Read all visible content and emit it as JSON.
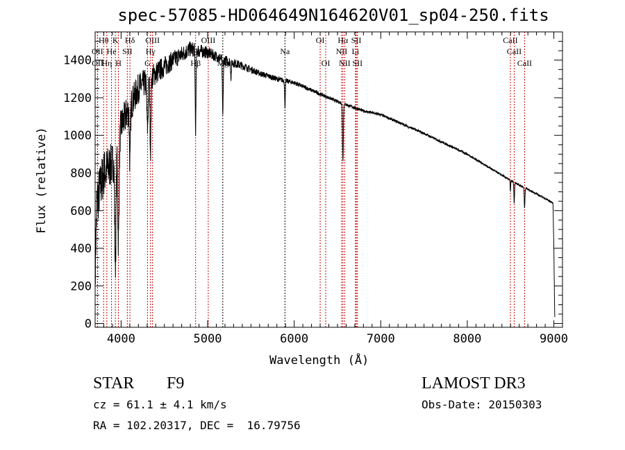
{
  "title": "spec-57085-HD064649N164620V01_sp04-250.fits",
  "info": {
    "class": "STAR",
    "subclass": "F9",
    "survey": "LAMOST DR3",
    "cz": "cz = 61.1 ± 4.1 km/s",
    "obs_date": "Obs-Date: 20150303",
    "coords": "RA = 102.20317, DEC =  16.79756"
  },
  "chart_data": {
    "type": "line",
    "title": "spec-57085-HD064649N164620V01_sp04-250.fits",
    "xlabel": "Wavelength (Å)",
    "ylabel": "Flux (relative)",
    "xlim": [
      3700,
      9100
    ],
    "ylim": [
      -20,
      1550
    ],
    "xticks": [
      4000,
      5000,
      6000,
      7000,
      8000,
      9000
    ],
    "yticks": [
      0,
      200,
      400,
      600,
      800,
      1000,
      1200,
      1400
    ],
    "grid": false,
    "continuum": [
      [
        3700,
        300
      ],
      [
        3720,
        650
      ],
      [
        3800,
        800
      ],
      [
        3900,
        850
      ],
      [
        4000,
        1050
      ],
      [
        4100,
        1150
      ],
      [
        4200,
        1250
      ],
      [
        4400,
        1330
      ],
      [
        4600,
        1400
      ],
      [
        4800,
        1460
      ],
      [
        5000,
        1440
      ],
      [
        5200,
        1400
      ],
      [
        5400,
        1370
      ],
      [
        5600,
        1330
      ],
      [
        5800,
        1300
      ],
      [
        6000,
        1280
      ],
      [
        6200,
        1240
      ],
      [
        6500,
        1180
      ],
      [
        6800,
        1130
      ],
      [
        7000,
        1110
      ],
      [
        7500,
        1010
      ],
      [
        8000,
        900
      ],
      [
        8500,
        760
      ],
      [
        8800,
        690
      ],
      [
        8990,
        640
      ],
      [
        9000,
        400
      ],
      [
        9010,
        30
      ]
    ],
    "noise": [
      [
        3700,
        180
      ],
      [
        4000,
        120
      ],
      [
        4500,
        70
      ],
      [
        5000,
        40
      ],
      [
        5600,
        20
      ],
      [
        6500,
        10
      ],
      [
        9000,
        6
      ]
    ],
    "absorption": [
      {
        "center": 3934,
        "depth": 600,
        "width": 8
      },
      {
        "center": 3969,
        "depth": 550,
        "width": 8
      },
      {
        "center": 4102,
        "depth": 300,
        "width": 6
      },
      {
        "center": 4305,
        "depth": 250,
        "width": 8
      },
      {
        "center": 4340,
        "depth": 380,
        "width": 6
      },
      {
        "center": 4861,
        "depth": 420,
        "width": 5
      },
      {
        "center": 5175,
        "depth": 300,
        "width": 5
      },
      {
        "center": 5270,
        "depth": 80,
        "width": 4
      },
      {
        "center": 5893,
        "depth": 140,
        "width": 4
      },
      {
        "center": 6563,
        "depth": 300,
        "width": 5
      },
      {
        "center": 8498,
        "depth": 60,
        "width": 3
      },
      {
        "center": 8542,
        "depth": 110,
        "width": 4
      },
      {
        "center": 8662,
        "depth": 110,
        "width": 4
      }
    ],
    "lines": [
      {
        "label": "Hθ",
        "wave": 3798,
        "row": 0
      },
      {
        "label": "K",
        "wave": 3934,
        "row": 0
      },
      {
        "label": "Hδ",
        "wave": 4102,
        "row": 0
      },
      {
        "label": "OIII",
        "wave": 4363,
        "row": 0
      },
      {
        "label": "OIII",
        "wave": 5007,
        "row": 0
      },
      {
        "label": "OI",
        "wave": 6300,
        "row": 0
      },
      {
        "label": "Hα",
        "wave": 6563,
        "row": 0
      },
      {
        "label": "SII",
        "wave": 6717,
        "row": 0
      },
      {
        "label": "CaII",
        "wave": 8498,
        "row": 0
      },
      {
        "label": "OII",
        "wave": 3727,
        "row": 1
      },
      {
        "label": "He",
        "wave": 3889,
        "row": 1
      },
      {
        "label": "SII",
        "wave": 4072,
        "row": 1
      },
      {
        "label": "Hγ",
        "wave": 4340,
        "row": 1
      },
      {
        "label": "Na",
        "wave": 5893,
        "row": 1
      },
      {
        "label": "NII",
        "wave": 6548,
        "row": 1
      },
      {
        "label": "Li",
        "wave": 6708,
        "row": 1
      },
      {
        "label": "CaII",
        "wave": 8542,
        "row": 1
      },
      {
        "label": "OII",
        "wave": 3729,
        "row": 2
      },
      {
        "label": "Hη",
        "wave": 3835,
        "row": 2
      },
      {
        "label": "H",
        "wave": 3969,
        "row": 2
      },
      {
        "label": "G",
        "wave": 4305,
        "row": 2
      },
      {
        "label": "Hβ",
        "wave": 4861,
        "row": 2
      },
      {
        "label": "Mg",
        "wave": 5175,
        "row": 2
      },
      {
        "label": "OI",
        "wave": 6364,
        "row": 2
      },
      {
        "label": "NII",
        "wave": 6583,
        "row": 2
      },
      {
        "label": "SII",
        "wave": 6731,
        "row": 2
      },
      {
        "label": "CaII",
        "wave": 8662,
        "row": 2
      }
    ],
    "line_colors": {
      "spectrum": "#000000",
      "red_lines": "#cc0000",
      "black_lines": "#000000"
    }
  }
}
